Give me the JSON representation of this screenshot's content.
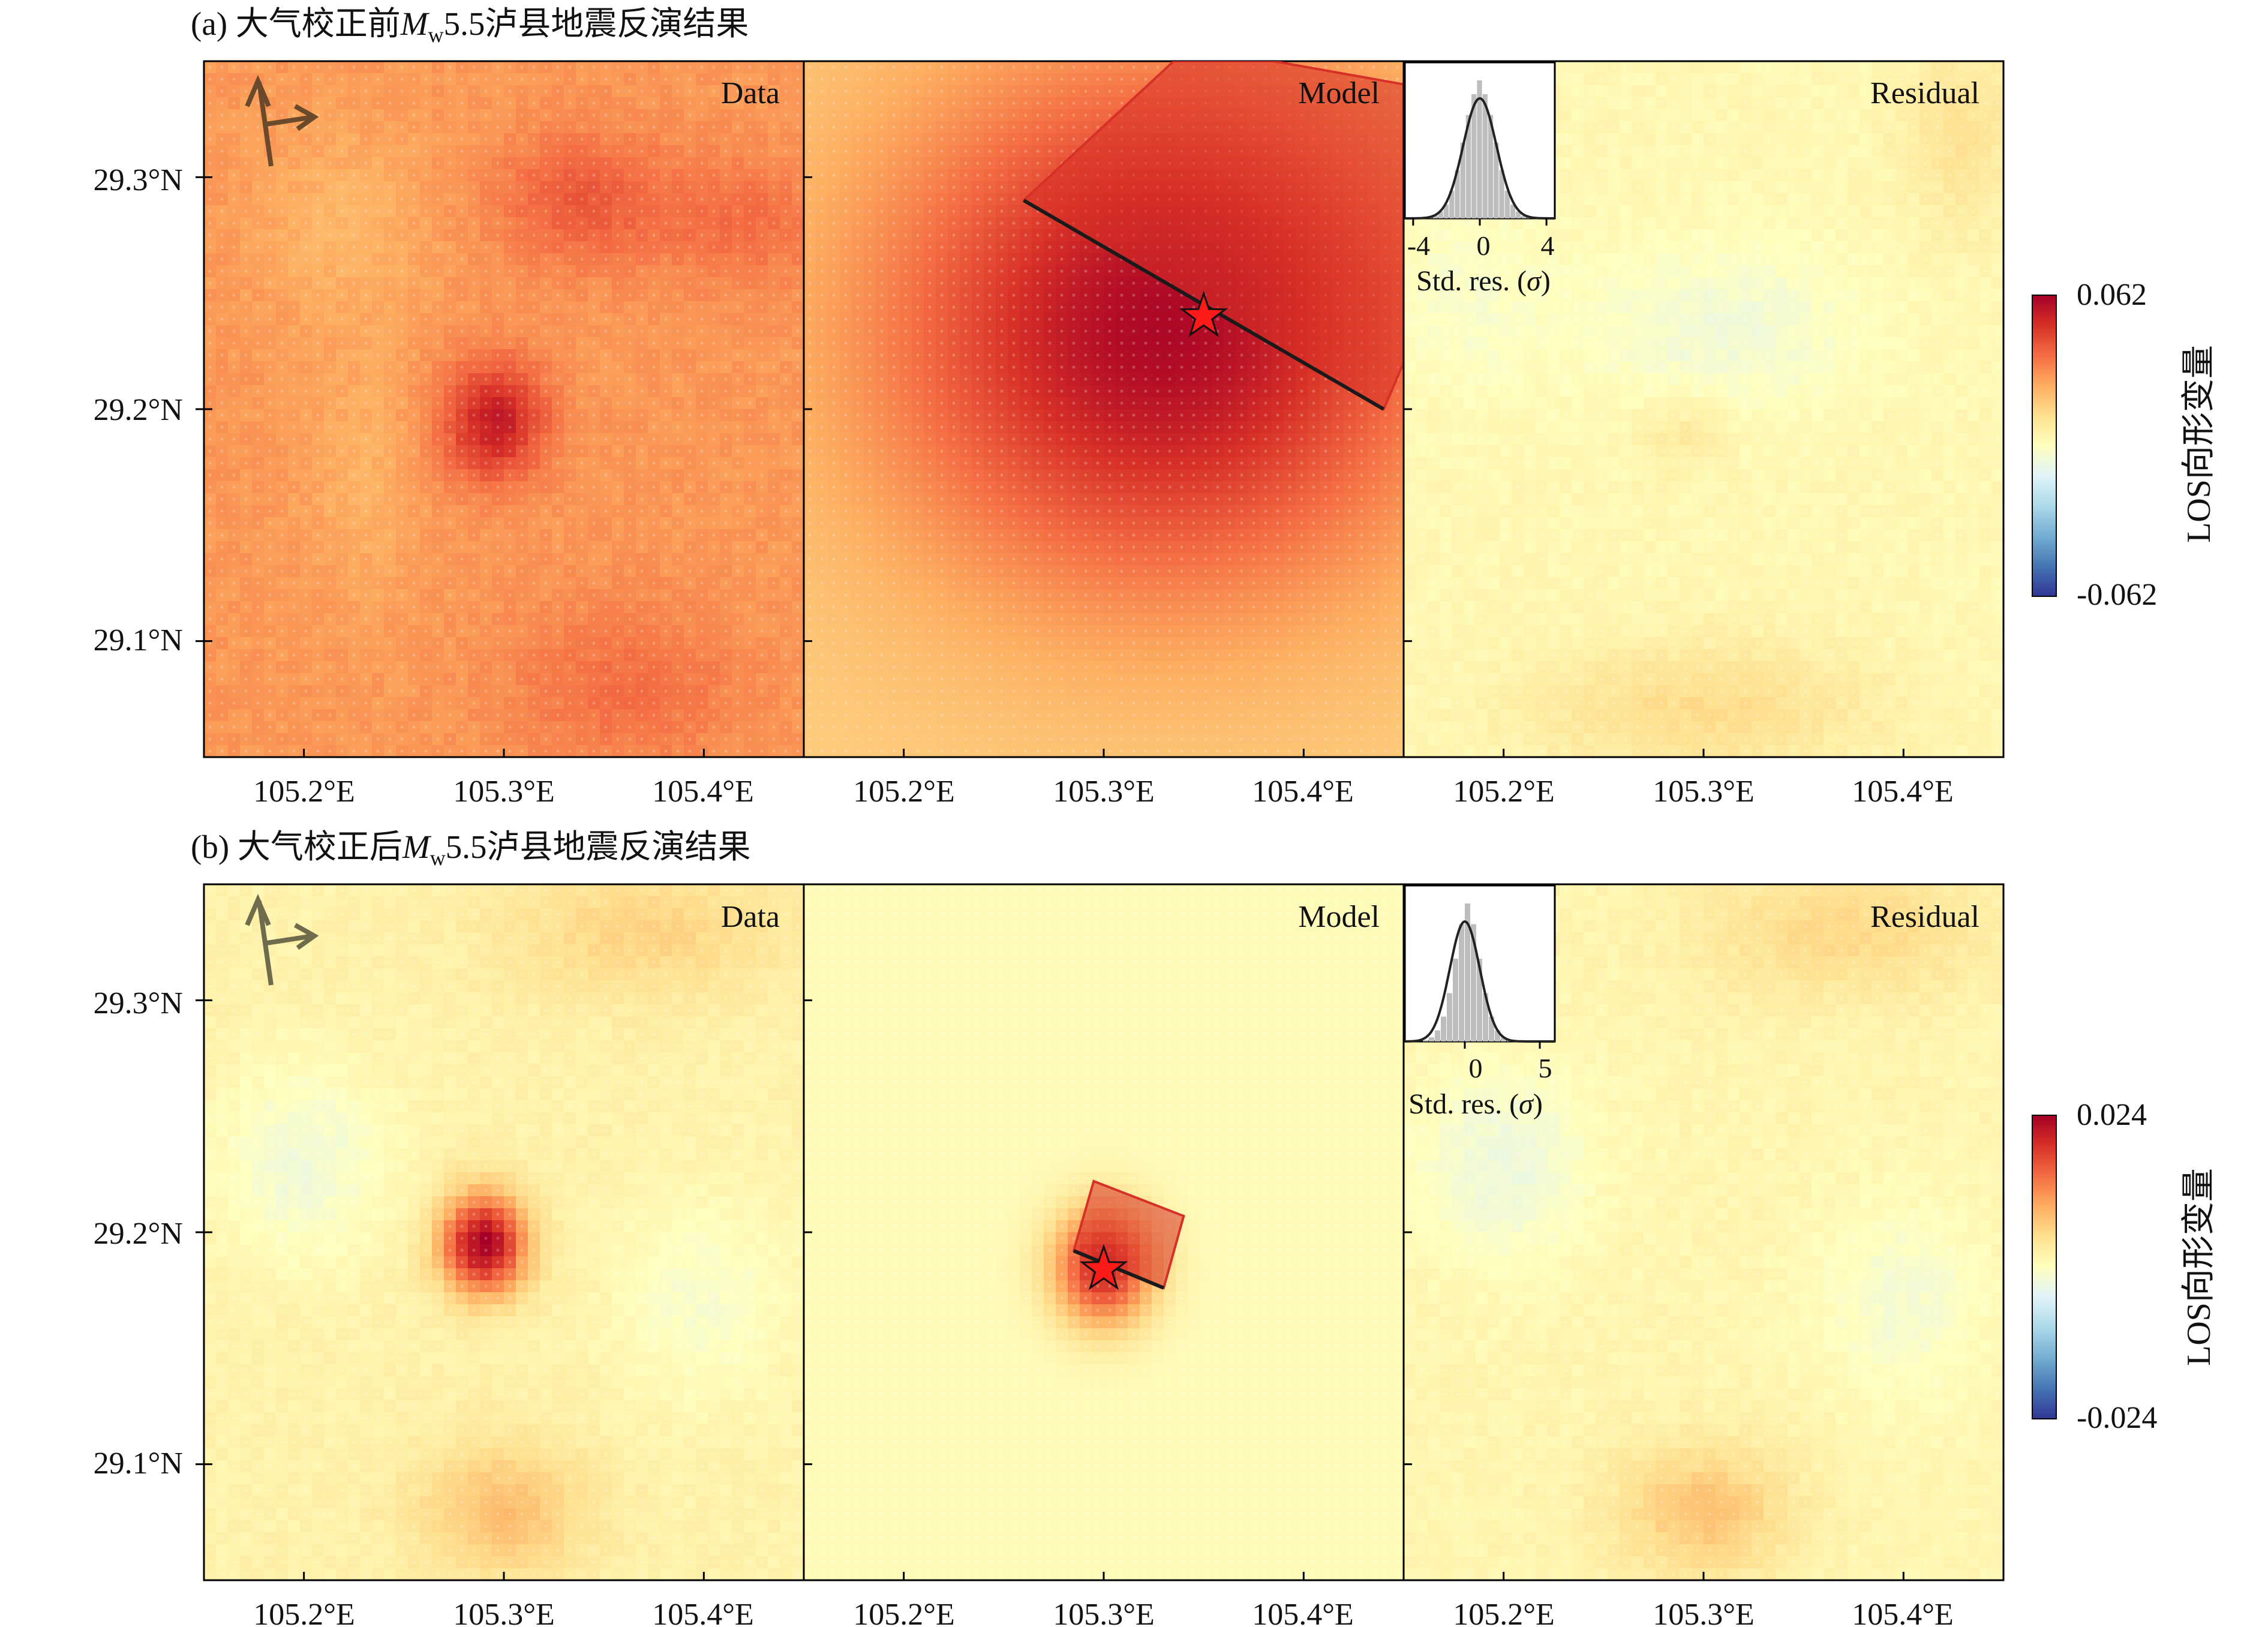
{
  "figure": {
    "background": "#ffffff",
    "colormap": [
      "#313695",
      "#4575b4",
      "#74add1",
      "#abd9e9",
      "#e0f3f8",
      "#ffffbf",
      "#fee090",
      "#fdae61",
      "#f46d43",
      "#d73027",
      "#a50026"
    ]
  },
  "rows": [
    {
      "title": "(a) 大气校正前Mw5.5泸县地震反演结果",
      "title_parts": {
        "prefix": "(a) 大气校正前",
        "M": "M",
        "w": "w",
        "suffix": "5.5泸县地震反演结果"
      },
      "panels": [
        {
          "label": "Data"
        },
        {
          "label": "Model"
        },
        {
          "label": "Residual"
        }
      ],
      "y_ticks": [
        "29.3°N",
        "29.2°N",
        "29.1°N"
      ],
      "x_ticks": [
        "105.2°E",
        "105.3°E",
        "105.4°E"
      ],
      "colorbar": {
        "max_label": "0.062",
        "min_label": "-0.062",
        "label": "LOS向形变量"
      },
      "inset": {
        "tick_labels": [
          "-4",
          "0",
          "4"
        ],
        "xlabel_prefix": "Std. res. (",
        "sigma": "σ",
        "xlabel_suffix": ")"
      }
    },
    {
      "title": "(b) 大气校正后Mw5.5泸县地震反演结果",
      "title_parts": {
        "prefix": "(b) 大气校正后",
        "M": "M",
        "w": "w",
        "suffix": "5.5泸县地震反演结果"
      },
      "panels": [
        {
          "label": "Data"
        },
        {
          "label": "Model"
        },
        {
          "label": "Residual"
        }
      ],
      "y_ticks": [
        "29.3°N",
        "29.2°N",
        "29.1°N"
      ],
      "x_ticks": [
        "105.2°E",
        "105.3°E",
        "105.4°E"
      ],
      "colorbar": {
        "max_label": "0.024",
        "min_label": "-0.024",
        "label": "LOS向形变量"
      },
      "inset": {
        "tick_labels": [
          "0",
          "5"
        ],
        "xlabel_prefix": "Std. res. (",
        "sigma": "σ",
        "xlabel_suffix": ")"
      }
    }
  ],
  "chart_data": [
    {
      "type": "heatmap",
      "title": "(a) 大气校正前Mw5.5泸县地震反演结果",
      "panels": [
        "Data",
        "Model",
        "Residual"
      ],
      "x_extent": [
        105.15,
        105.45
      ],
      "y_extent": [
        29.05,
        29.35
      ],
      "x_ticks": [
        105.2,
        105.3,
        105.4
      ],
      "y_ticks": [
        29.1,
        29.2,
        29.3
      ],
      "colorbar": {
        "label": "LOS向形变量",
        "range": [
          -0.062,
          0.062
        ]
      },
      "data_fields": {
        "data": {
          "base": 0.029,
          "blobs": [
            {
              "lon": 105.295,
              "lat": 29.195,
              "sx": 0.018,
              "sy": 0.018,
              "amp": 0.026
            },
            {
              "lon": 105.34,
              "lat": 29.29,
              "sx": 0.03,
              "sy": 0.02,
              "amp": 0.012
            },
            {
              "lon": 105.42,
              "lat": 29.28,
              "sx": 0.03,
              "sy": 0.02,
              "amp": 0.008
            },
            {
              "lon": 105.36,
              "lat": 29.08,
              "sx": 0.04,
              "sy": 0.025,
              "amp": 0.008
            },
            {
              "lon": 105.22,
              "lat": 29.28,
              "sx": 0.03,
              "sy": 0.03,
              "amp": -0.006
            },
            {
              "lon": 105.23,
              "lat": 29.17,
              "sx": 0.02,
              "sy": 0.04,
              "amp": -0.005
            }
          ]
        },
        "model": {
          "base": 0.017,
          "blobs": [
            {
              "lon": 105.33,
              "lat": 29.235,
              "sx": 0.1,
              "sy": 0.08,
              "amp": 0.043
            }
          ]
        },
        "residual": {
          "base": 0.003,
          "blobs": [
            {
              "lon": 105.31,
              "lat": 29.235,
              "sx": 0.05,
              "sy": 0.025,
              "amp": -0.008
            },
            {
              "lon": 105.18,
              "lat": 29.25,
              "sx": 0.03,
              "sy": 0.03,
              "amp": -0.005
            },
            {
              "lon": 105.29,
              "lat": 29.19,
              "sx": 0.015,
              "sy": 0.012,
              "amp": 0.006
            },
            {
              "lon": 105.3,
              "lat": 29.07,
              "sx": 0.06,
              "sy": 0.02,
              "amp": 0.01
            },
            {
              "lon": 105.43,
              "lat": 29.32,
              "sx": 0.02,
              "sy": 0.03,
              "amp": 0.008
            }
          ]
        }
      },
      "fault": {
        "top_trace": [
          [
            105.26,
            29.29
          ],
          [
            105.44,
            29.2
          ]
        ],
        "polygon": [
          [
            105.26,
            29.29
          ],
          [
            105.44,
            29.2
          ],
          [
            105.45,
            29.22
          ],
          [
            105.45,
            29.34
          ],
          [
            105.385,
            29.35
          ],
          [
            105.335,
            29.35
          ]
        ],
        "epicenter": [
          105.35,
          29.24
        ]
      },
      "inset_histogram": {
        "x_range": [
          -4.5,
          4.5
        ],
        "x_ticks": [
          -4,
          0,
          4
        ],
        "sigma": 1.0,
        "counts": [
          0,
          0,
          0,
          0,
          0.01,
          0.02,
          0.05,
          0.1,
          0.2,
          0.35,
          0.55,
          0.75,
          0.9,
          1.0,
          0.9,
          0.75,
          0.55,
          0.35,
          0.2,
          0.1,
          0.05,
          0.02,
          0.01,
          0,
          0,
          0,
          0
        ]
      },
      "los_arrows": {
        "azimuth": "N",
        "look": "E"
      }
    },
    {
      "type": "heatmap",
      "title": "(b) 大气校正后Mw5.5泸县地震反演结果",
      "panels": [
        "Data",
        "Model",
        "Residual"
      ],
      "x_extent": [
        105.15,
        105.45
      ],
      "y_extent": [
        29.05,
        29.35
      ],
      "x_ticks": [
        105.2,
        105.3,
        105.4
      ],
      "y_ticks": [
        29.1,
        29.2,
        29.3
      ],
      "colorbar": {
        "label": "LOS向形变量",
        "range": [
          -0.024,
          0.024
        ]
      },
      "data_fields": {
        "data": {
          "base": 0.002,
          "blobs": [
            {
              "lon": 105.29,
              "lat": 29.195,
              "sx": 0.015,
              "sy": 0.015,
              "amp": 0.022
            },
            {
              "lon": 105.3,
              "lat": 29.08,
              "sx": 0.03,
              "sy": 0.02,
              "amp": 0.006
            },
            {
              "lon": 105.2,
              "lat": 29.23,
              "sx": 0.03,
              "sy": 0.03,
              "amp": -0.004
            },
            {
              "lon": 105.4,
              "lat": 29.17,
              "sx": 0.03,
              "sy": 0.03,
              "amp": -0.003
            },
            {
              "lon": 105.37,
              "lat": 29.33,
              "sx": 0.05,
              "sy": 0.02,
              "amp": 0.004
            }
          ]
        },
        "model": {
          "base": 0.0005,
          "blobs": [
            {
              "lon": 105.3,
              "lat": 29.185,
              "sx": 0.018,
              "sy": 0.018,
              "amp": 0.02
            }
          ]
        },
        "residual": {
          "base": 0.0015,
          "blobs": [
            {
              "lon": 105.3,
              "lat": 29.08,
              "sx": 0.03,
              "sy": 0.02,
              "amp": 0.006
            },
            {
              "lon": 105.2,
              "lat": 29.23,
              "sx": 0.03,
              "sy": 0.03,
              "amp": -0.004
            },
            {
              "lon": 105.4,
              "lat": 29.17,
              "sx": 0.03,
              "sy": 0.03,
              "amp": -0.003
            },
            {
              "lon": 105.37,
              "lat": 29.33,
              "sx": 0.05,
              "sy": 0.02,
              "amp": 0.004
            }
          ]
        }
      },
      "fault": {
        "top_trace": [
          [
            105.285,
            29.192
          ],
          [
            105.33,
            29.176
          ]
        ],
        "polygon": [
          [
            105.285,
            29.192
          ],
          [
            105.33,
            29.176
          ],
          [
            105.34,
            29.207
          ],
          [
            105.295,
            29.222
          ]
        ],
        "epicenter": [
          105.3,
          29.184
        ]
      },
      "inset_histogram": {
        "x_range": [
          -4,
          6
        ],
        "x_ticks": [
          0,
          5
        ],
        "sigma": 1.0,
        "counts": [
          0,
          0,
          0,
          0.01,
          0.03,
          0.08,
          0.18,
          0.35,
          0.6,
          0.85,
          1.0,
          0.85,
          0.6,
          0.35,
          0.18,
          0.08,
          0.03,
          0.01,
          0,
          0,
          0,
          0,
          0,
          0,
          0
        ]
      },
      "los_arrows": {
        "azimuth": "N",
        "look": "E"
      }
    }
  ]
}
